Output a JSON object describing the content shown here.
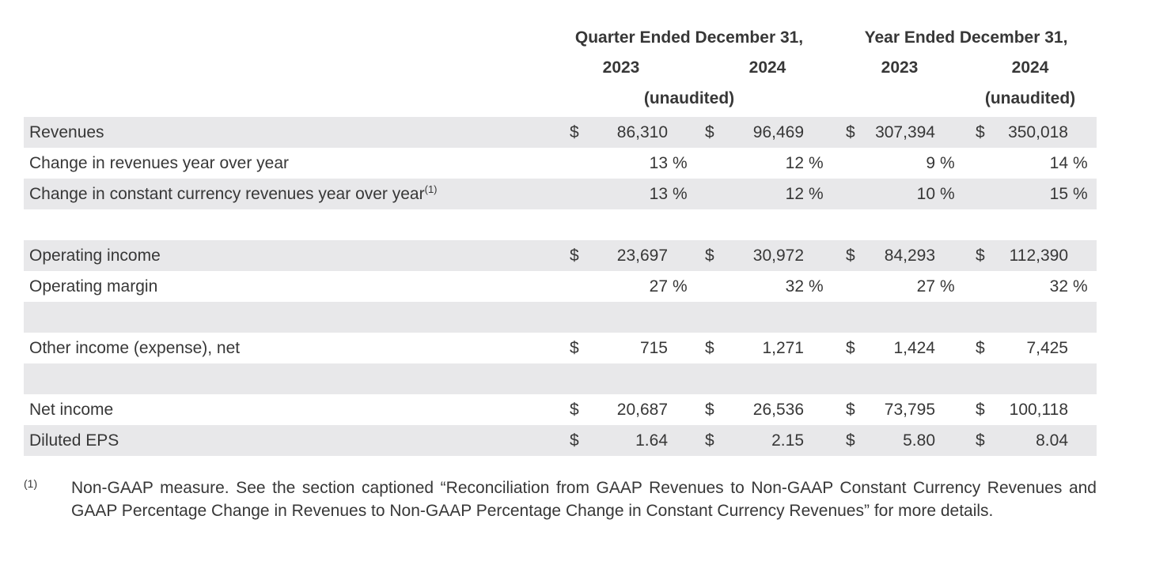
{
  "table": {
    "currency_symbol": "$",
    "percent_symbol": "%",
    "groups": [
      {
        "title": "Quarter Ended December 31,",
        "years": [
          "2023",
          "2024"
        ],
        "unaudited": "(unaudited)"
      },
      {
        "title": "Year Ended December 31,",
        "years": [
          "2023",
          "2024"
        ],
        "unaudited": "(unaudited)"
      }
    ],
    "rows": [
      {
        "type": "currency",
        "label": "Revenues",
        "values": [
          "86,310",
          "96,469",
          "307,394",
          "350,018"
        ]
      },
      {
        "type": "percent",
        "label": "Change in revenues year over year",
        "values": [
          "13",
          "12",
          "9",
          "14"
        ]
      },
      {
        "type": "percent",
        "label": "Change in constant currency revenues year over year",
        "sup": "(1)",
        "values": [
          "13",
          "12",
          "10",
          "15"
        ]
      },
      {
        "type": "spacer"
      },
      {
        "type": "currency",
        "label": "Operating income",
        "values": [
          "23,697",
          "30,972",
          "84,293",
          "112,390"
        ]
      },
      {
        "type": "percent",
        "label": "Operating margin",
        "values": [
          "27",
          "32",
          "27",
          "32"
        ]
      },
      {
        "type": "spacer"
      },
      {
        "type": "currency",
        "label": "Other income (expense), net",
        "values": [
          "715",
          "1,271",
          "1,424",
          "7,425"
        ]
      },
      {
        "type": "spacer"
      },
      {
        "type": "currency",
        "label": "Net income",
        "values": [
          "20,687",
          "26,536",
          "73,795",
          "100,118"
        ]
      },
      {
        "type": "currency",
        "label": "Diluted EPS",
        "values": [
          "1.64",
          "2.15",
          "5.80",
          "8.04"
        ]
      }
    ]
  },
  "footnote": {
    "marker": "(1)",
    "text": "Non-GAAP measure. See the section captioned “Reconciliation from GAAP Revenues to Non-GAAP Constant Currency Revenues and GAAP Percentage Change in Revenues to Non-GAAP Percentage Change in Constant Currency Revenues” for more details."
  },
  "colors": {
    "stripe_background": "#e8e8ea",
    "text": "#373737",
    "page_background": "#ffffff"
  }
}
